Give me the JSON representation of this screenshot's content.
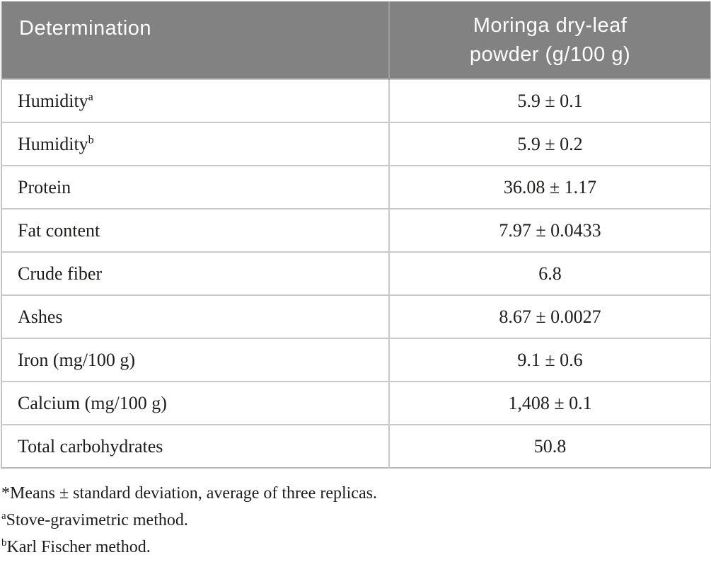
{
  "table": {
    "header": {
      "determination": "Determination",
      "value_column": "Moringa dry-leaf powder (g/100 g)"
    },
    "rows": [
      {
        "determination": "Humidity",
        "sup": "a",
        "value": "5.9 ± 0.1"
      },
      {
        "determination": "Humidity",
        "sup": "b",
        "value": "5.9 ± 0.2"
      },
      {
        "determination": "Protein",
        "sup": "",
        "value": "36.08 ± 1.17"
      },
      {
        "determination": "Fat content",
        "sup": "",
        "value": "7.97 ± 0.0433"
      },
      {
        "determination": "Crude fiber",
        "sup": "",
        "value": "6.8"
      },
      {
        "determination": "Ashes",
        "sup": "",
        "value": "8.67 ± 0.0027"
      },
      {
        "determination": "Iron (mg/100 g)",
        "sup": "",
        "value": "9.1 ± 0.6"
      },
      {
        "determination": "Calcium (mg/100 g)",
        "sup": "",
        "value": "1,408 ± 0.1"
      },
      {
        "determination": "Total carbohydrates",
        "sup": "",
        "value": "50.8"
      }
    ],
    "footnotes": [
      {
        "marker": "*",
        "text": "Means ± standard deviation, average of three replicas."
      },
      {
        "marker": "a",
        "text": "Stove-gravimetric method."
      },
      {
        "marker": "b",
        "text": "Karl Fischer method."
      }
    ]
  },
  "colors": {
    "header_bg": "#828282",
    "header_text": "#ffffff",
    "body_text": "#1d1d1b",
    "row_border": "#c9c9c9"
  }
}
